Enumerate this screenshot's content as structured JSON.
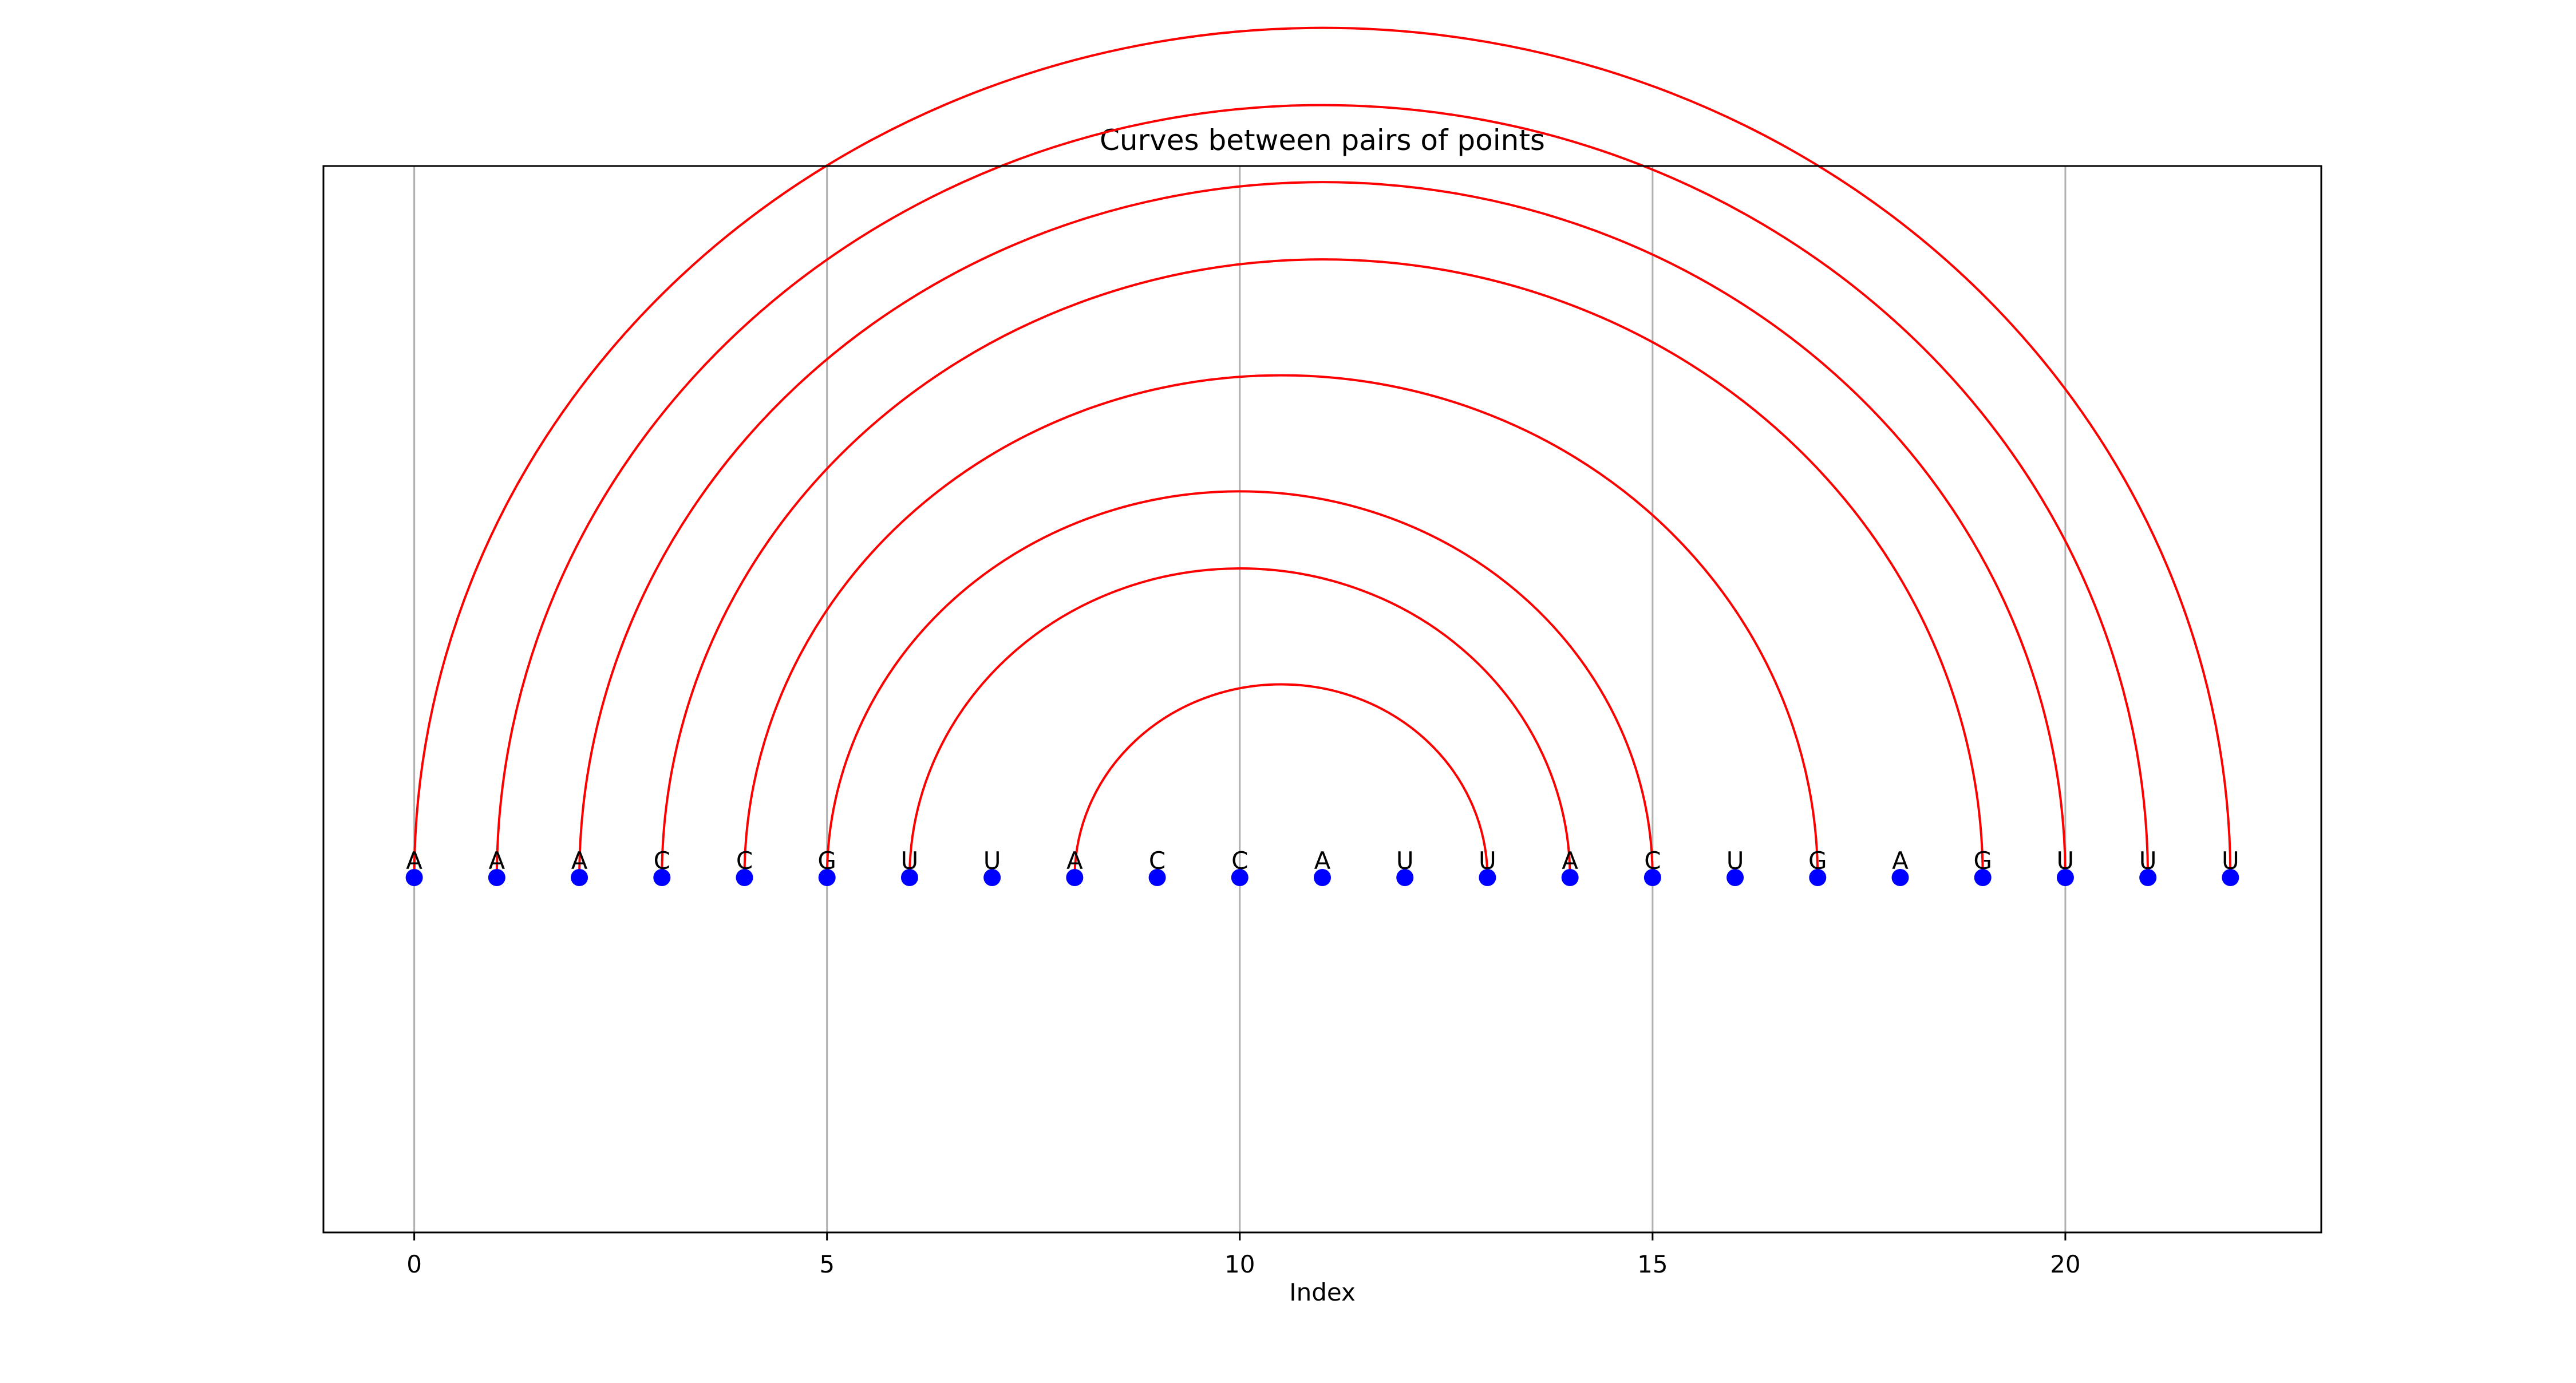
{
  "chart_data": {
    "type": "arc",
    "title": "Curves between pairs of points",
    "xlabel": "Index",
    "ylabel": "",
    "xlim": [
      -1.1,
      23.1
    ],
    "xticks": [
      0,
      5,
      10,
      15,
      20
    ],
    "grid": {
      "x": true,
      "y": false
    },
    "legend": "none",
    "sequence": [
      "A",
      "A",
      "A",
      "C",
      "C",
      "G",
      "U",
      "U",
      "A",
      "C",
      "C",
      "A",
      "U",
      "U",
      "A",
      "C",
      "U",
      "G",
      "A",
      "G",
      "U",
      "U",
      "U"
    ],
    "pairs": [
      [
        0,
        22
      ],
      [
        1,
        21
      ],
      [
        2,
        20
      ],
      [
        3,
        19
      ],
      [
        4,
        17
      ],
      [
        5,
        15
      ],
      [
        6,
        14
      ],
      [
        8,
        13
      ]
    ],
    "colors": {
      "point": "#0000ff",
      "curve": "#ff0000",
      "grid": "#b0b0b0",
      "frame": "#000000"
    }
  }
}
